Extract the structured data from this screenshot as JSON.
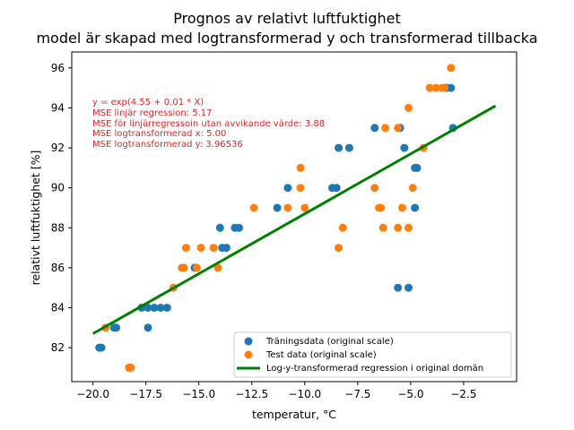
{
  "chart_data": {
    "type": "scatter",
    "title": "Prognos av relativt luftfuktighet",
    "subtitle": "model är skapad med logtransformerad y och transformerad tillbacka",
    "xlabel": "temperatur, °C",
    "ylabel": "relativt luftfuktighet [%]",
    "xlim": [
      -21.0,
      0.0
    ],
    "ylim": [
      80.3,
      96.8
    ],
    "xticks": [
      -20.0,
      -17.5,
      -15.0,
      -12.5,
      -10.0,
      -7.5,
      -5.0,
      -2.5
    ],
    "xtick_labels": [
      "−20.0",
      "−17.5",
      "−15.0",
      "−12.5",
      "−10.0",
      "−7.5",
      "−5.0",
      "−2.5"
    ],
    "yticks": [
      82,
      84,
      86,
      88,
      90,
      92,
      94,
      96
    ],
    "grid": false,
    "legend_position": "lower-right",
    "annotations": [
      "y = exp(4.55 + 0.01 * X)",
      "MSE linjär regression: 5.17",
      "MSE för linjärregressoin utan avvikande värde: 3.88",
      "MSE logtransformerad x: 5.00",
      "MSE logtransformerad y: 3.96536"
    ],
    "series": [
      {
        "name": "Träningsdata (original scale)",
        "kind": "scatter",
        "color": "#1f77b4",
        "points": [
          [
            -19.7,
            82
          ],
          [
            -19.6,
            82
          ],
          [
            -19.0,
            83
          ],
          [
            -18.9,
            83
          ],
          [
            -17.7,
            84
          ],
          [
            -17.4,
            84
          ],
          [
            -17.1,
            84
          ],
          [
            -16.8,
            84
          ],
          [
            -16.5,
            84
          ],
          [
            -17.4,
            83
          ],
          [
            -15.2,
            86
          ],
          [
            -14.0,
            88
          ],
          [
            -13.3,
            88
          ],
          [
            -13.1,
            88
          ],
          [
            -13.9,
            87
          ],
          [
            -13.7,
            87
          ],
          [
            -11.3,
            89
          ],
          [
            -10.8,
            90
          ],
          [
            -8.7,
            90
          ],
          [
            -8.5,
            90
          ],
          [
            -8.4,
            92
          ],
          [
            -7.9,
            92
          ],
          [
            -6.7,
            93
          ],
          [
            -5.5,
            93
          ],
          [
            -3.0,
            93
          ],
          [
            -5.3,
            92
          ],
          [
            -4.8,
            91
          ],
          [
            -4.7,
            91
          ],
          [
            -4.8,
            89
          ],
          [
            -5.6,
            85
          ],
          [
            -5.1,
            85
          ],
          [
            -3.3,
            95
          ],
          [
            -3.1,
            95
          ]
        ]
      },
      {
        "name": "Test data (original scale)",
        "kind": "scatter",
        "color": "#ff7f0e",
        "points": [
          [
            -19.4,
            83
          ],
          [
            -18.3,
            81
          ],
          [
            -18.2,
            81
          ],
          [
            -16.2,
            85
          ],
          [
            -15.8,
            86
          ],
          [
            -15.7,
            86
          ],
          [
            -15.1,
            86
          ],
          [
            -14.1,
            86
          ],
          [
            -15.6,
            87
          ],
          [
            -14.9,
            87
          ],
          [
            -14.3,
            87
          ],
          [
            -12.4,
            89
          ],
          [
            -10.8,
            89
          ],
          [
            -10.0,
            89
          ],
          [
            -6.5,
            89
          ],
          [
            -6.4,
            89
          ],
          [
            -5.4,
            89
          ],
          [
            -10.2,
            91
          ],
          [
            -10.2,
            90
          ],
          [
            -6.7,
            90
          ],
          [
            -4.9,
            90
          ],
          [
            -8.4,
            87
          ],
          [
            -8.2,
            88
          ],
          [
            -6.3,
            88
          ],
          [
            -5.6,
            88
          ],
          [
            -5.1,
            88
          ],
          [
            -6.2,
            93
          ],
          [
            -5.6,
            93
          ],
          [
            -4.4,
            92
          ],
          [
            -5.1,
            94
          ],
          [
            -4.1,
            95
          ],
          [
            -3.8,
            95
          ],
          [
            -3.5,
            95
          ],
          [
            -3.4,
            95
          ],
          [
            -3.1,
            96
          ]
        ]
      },
      {
        "name": "Log-y-transformerad regression i original domän",
        "kind": "line",
        "color": "#008000",
        "x": [
          -20.0,
          -1.0
        ],
        "y": [
          82.7,
          94.1
        ]
      }
    ]
  }
}
